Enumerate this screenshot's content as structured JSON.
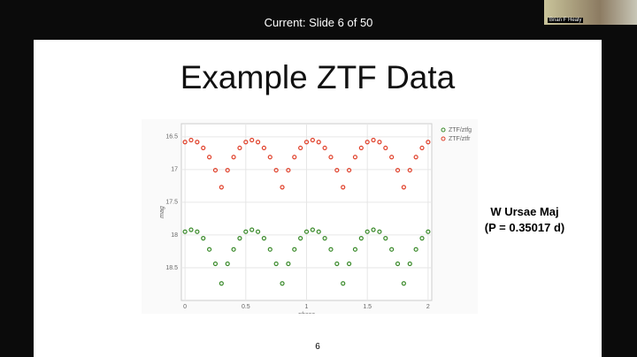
{
  "header": {
    "status": "Current: Slide 6 of 50"
  },
  "video": {
    "name": "Brian F Healy"
  },
  "slide": {
    "title": "Example ZTF Data",
    "annotation": [
      "W Ursae Maj",
      "(P = 0.35017 d)"
    ],
    "page_number": "6"
  },
  "chart_data": {
    "type": "scatter",
    "x_label": "phase",
    "y_label": "mag",
    "x": [
      0,
      0.05,
      0.1,
      0.15,
      0.2,
      0.25,
      0.3,
      0.35,
      0.4,
      0.45,
      0.5,
      0.55,
      0.6,
      0.65,
      0.7,
      0.75,
      0.8,
      0.85,
      0.9,
      0.95,
      1,
      1.05,
      1.1,
      1.15,
      1.2,
      1.25,
      1.3,
      1.35,
      1.4,
      1.45,
      1.5,
      1.55,
      1.6,
      1.65,
      1.7,
      1.75,
      1.8,
      1.85,
      1.9,
      1.95,
      2
    ],
    "series": [
      {
        "name": "ZTF/ztfg",
        "color": "#3a8a2a",
        "values": [
          17.95,
          17.92,
          17.95,
          18.05,
          18.22,
          18.44,
          18.74,
          18.44,
          18.22,
          18.05,
          17.95,
          17.92,
          17.95,
          18.05,
          18.22,
          18.44,
          18.74,
          18.44,
          18.22,
          18.05,
          17.95,
          17.92,
          17.95,
          18.05,
          18.22,
          18.44,
          18.74,
          18.44,
          18.22,
          18.05,
          17.95,
          17.92,
          17.95,
          18.05,
          18.22,
          18.44,
          18.74,
          18.44,
          18.22,
          18.05,
          17.95
        ]
      },
      {
        "name": "ZTF/ztfr",
        "color": "#e0402a",
        "values": [
          16.58,
          16.55,
          16.58,
          16.67,
          16.81,
          17.01,
          17.27,
          17.01,
          16.81,
          16.67,
          16.58,
          16.55,
          16.58,
          16.67,
          16.81,
          17.01,
          17.27,
          17.01,
          16.81,
          16.67,
          16.58,
          16.55,
          16.58,
          16.67,
          16.81,
          17.01,
          17.27,
          17.01,
          16.81,
          16.67,
          16.58,
          16.55,
          16.58,
          16.67,
          16.81,
          17.01,
          17.27,
          17.01,
          16.81,
          16.67,
          16.58
        ]
      }
    ],
    "xlim": [
      -0.03,
      2.03
    ],
    "xticks": [
      0,
      0.5,
      1,
      1.5,
      2
    ],
    "ylim": [
      16.3,
      19.0
    ],
    "yticks": [
      16.5,
      17,
      17.5,
      18,
      18.5
    ],
    "y_inverted": true,
    "grid": true
  }
}
